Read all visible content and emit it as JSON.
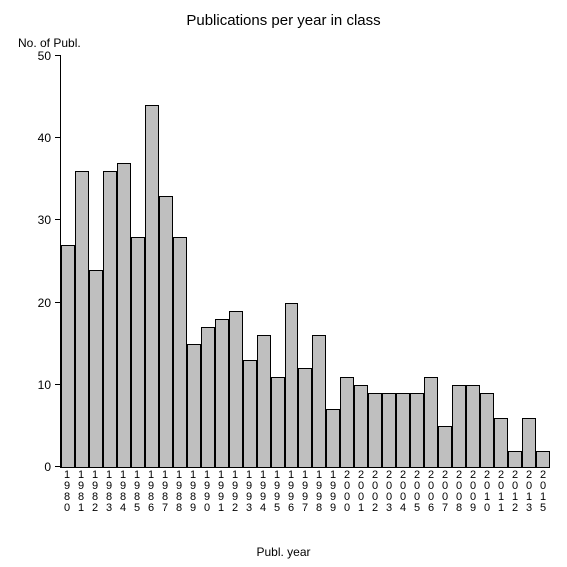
{
  "chart": {
    "type": "bar",
    "title": "Publications per year in class",
    "title_fontsize": 15,
    "y_axis_label": "No. of Publ.",
    "x_axis_label": "Publ. year",
    "label_fontsize": 12,
    "ylim": [
      0,
      50
    ],
    "ytick_step": 10,
    "yticks": [
      0,
      10,
      20,
      30,
      40,
      50
    ],
    "background_color": "#ffffff",
    "bar_fill": "#bfbfbf",
    "bar_border": "#000000",
    "axis_color": "#000000",
    "categories": [
      "1980",
      "1981",
      "1982",
      "1983",
      "1984",
      "1985",
      "1986",
      "1987",
      "1988",
      "1989",
      "1990",
      "1991",
      "1992",
      "1993",
      "1994",
      "1995",
      "1996",
      "1997",
      "1998",
      "1999",
      "2000",
      "2001",
      "2002",
      "2003",
      "2004",
      "2005",
      "2006",
      "2007",
      "2008",
      "2009",
      "2010",
      "2011",
      "2012",
      "2013",
      "2015"
    ],
    "values": [
      27,
      36,
      24,
      36,
      37,
      28,
      44,
      33,
      28,
      15,
      17,
      18,
      19,
      13,
      16,
      11,
      20,
      12,
      16,
      7,
      11,
      10,
      9,
      9,
      9,
      9,
      11,
      5,
      10,
      10,
      9,
      6,
      2,
      6,
      2
    ]
  }
}
